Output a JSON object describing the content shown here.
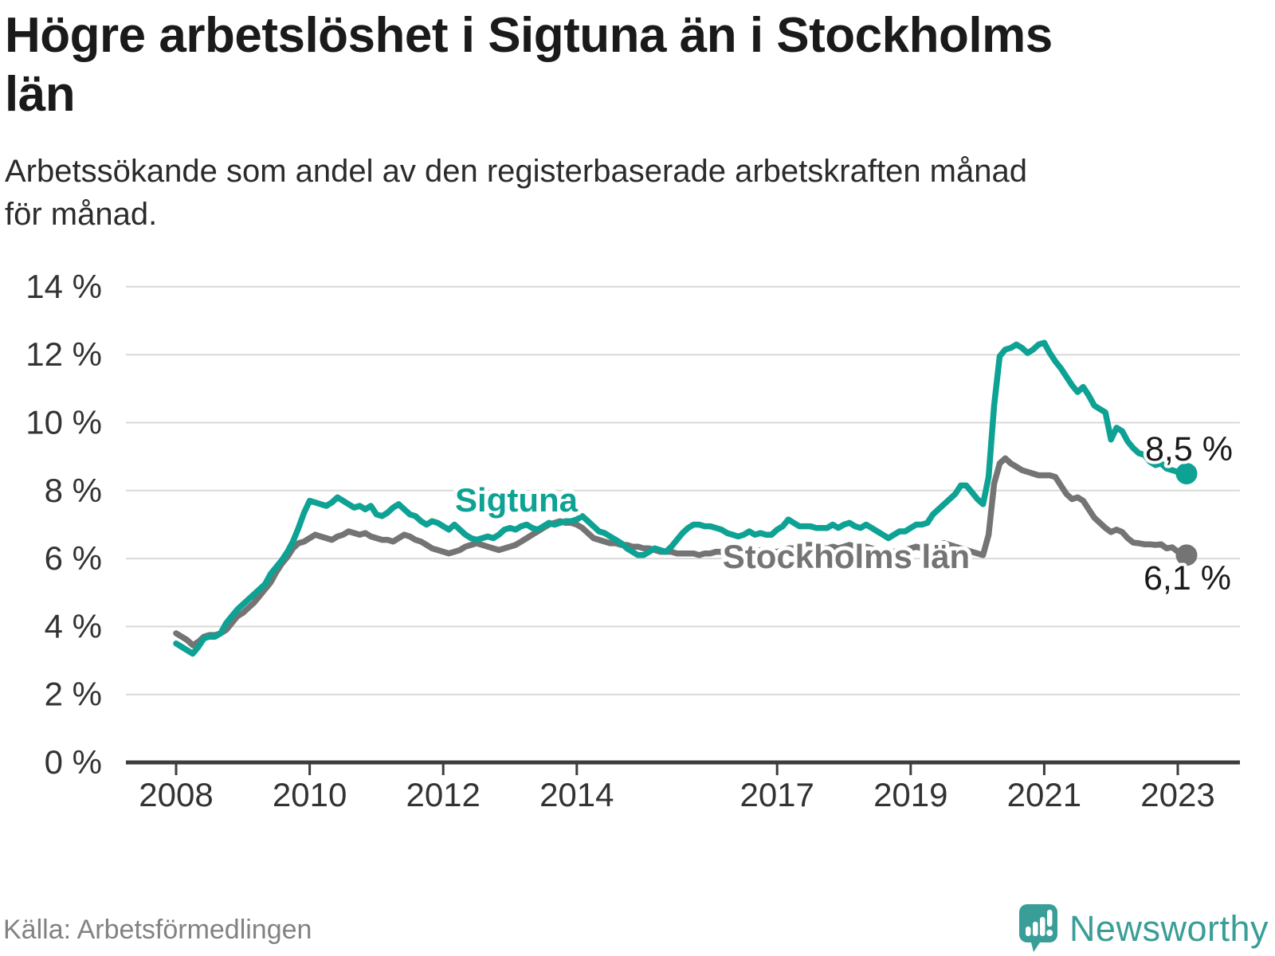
{
  "header": {
    "title": "Högre arbetslöshet i Sigtuna än i Stockholms\nlän",
    "subtitle": "Arbetssökande som andel av den registerbaserade arbetskraften månad\nför månad."
  },
  "chart_data": {
    "type": "line",
    "title": "Högre arbetslöshet i Sigtuna än i Stockholms län",
    "ylabel": "",
    "xlabel": "",
    "unit": "%",
    "x_start_year": 2008,
    "x_start_month": 1,
    "months_per_point": 1,
    "ylim": [
      0,
      14
    ],
    "grid": true,
    "y_ticks": [
      0,
      2,
      4,
      6,
      8,
      10,
      12,
      14
    ],
    "y_tick_labels": [
      "0 %",
      "2 %",
      "4 %",
      "6 %",
      "8 %",
      "10 %",
      "12 %",
      "14 %"
    ],
    "x_ticks": [
      2008,
      2010,
      2012,
      2014,
      2017,
      2019,
      2021,
      2023
    ],
    "x_tick_labels": [
      "2008",
      "2010",
      "2012",
      "2014",
      "2017",
      "2019",
      "2021",
      "2023"
    ],
    "series": [
      {
        "name": "Sigtuna",
        "color": "#0da294",
        "end_label": "8,5 %",
        "values": [
          3.5,
          3.4,
          3.3,
          3.2,
          3.4,
          3.65,
          3.7,
          3.7,
          3.8,
          4.1,
          4.3,
          4.5,
          4.65,
          4.8,
          4.95,
          5.1,
          5.25,
          5.55,
          5.75,
          5.95,
          6.2,
          6.5,
          6.9,
          7.35,
          7.7,
          7.65,
          7.6,
          7.55,
          7.65,
          7.8,
          7.7,
          7.6,
          7.5,
          7.55,
          7.45,
          7.55,
          7.3,
          7.25,
          7.35,
          7.5,
          7.6,
          7.45,
          7.3,
          7.25,
          7.1,
          7.0,
          7.1,
          7.05,
          6.95,
          6.85,
          7.0,
          6.85,
          6.7,
          6.6,
          6.55,
          6.6,
          6.65,
          6.6,
          6.7,
          6.85,
          6.9,
          6.85,
          6.95,
          7.0,
          6.9,
          6.85,
          6.95,
          7.05,
          7.0,
          7.05,
          7.1,
          7.1,
          7.15,
          7.25,
          7.1,
          6.95,
          6.8,
          6.75,
          6.65,
          6.55,
          6.45,
          6.3,
          6.2,
          6.1,
          6.1,
          6.2,
          6.3,
          6.25,
          6.2,
          6.35,
          6.55,
          6.75,
          6.9,
          7.0,
          7.0,
          6.95,
          6.95,
          6.9,
          6.85,
          6.75,
          6.7,
          6.65,
          6.7,
          6.8,
          6.7,
          6.75,
          6.7,
          6.7,
          6.85,
          6.95,
          7.15,
          7.05,
          6.95,
          6.95,
          6.95,
          6.9,
          6.9,
          6.9,
          7.0,
          6.9,
          7.0,
          7.05,
          6.95,
          6.9,
          7.0,
          6.9,
          6.8,
          6.7,
          6.6,
          6.7,
          6.8,
          6.8,
          6.9,
          7.0,
          7.0,
          7.05,
          7.3,
          7.45,
          7.6,
          7.75,
          7.9,
          8.15,
          8.15,
          7.95,
          7.75,
          7.6,
          8.4,
          10.5,
          11.95,
          12.15,
          12.2,
          12.3,
          12.2,
          12.05,
          12.15,
          12.3,
          12.35,
          12.05,
          11.8,
          11.6,
          11.35,
          11.1,
          10.9,
          11.05,
          10.8,
          10.5,
          10.4,
          10.3,
          9.5,
          9.85,
          9.75,
          9.45,
          9.25,
          9.1,
          9.05,
          8.85,
          8.75,
          8.8,
          8.65,
          8.6,
          8.55,
          8.5
        ]
      },
      {
        "name": "Stockholms län",
        "color": "#747474",
        "end_label": "6,1 %",
        "values": [
          3.8,
          3.7,
          3.6,
          3.45,
          3.55,
          3.7,
          3.75,
          3.75,
          3.8,
          3.9,
          4.1,
          4.3,
          4.4,
          4.55,
          4.7,
          4.9,
          5.1,
          5.3,
          5.6,
          5.85,
          6.05,
          6.3,
          6.45,
          6.5,
          6.6,
          6.7,
          6.65,
          6.6,
          6.55,
          6.65,
          6.7,
          6.8,
          6.75,
          6.7,
          6.75,
          6.65,
          6.6,
          6.55,
          6.55,
          6.5,
          6.6,
          6.7,
          6.65,
          6.55,
          6.5,
          6.4,
          6.3,
          6.25,
          6.2,
          6.15,
          6.2,
          6.25,
          6.35,
          6.4,
          6.45,
          6.4,
          6.35,
          6.3,
          6.25,
          6.3,
          6.35,
          6.4,
          6.5,
          6.6,
          6.7,
          6.8,
          6.9,
          7.0,
          7.05,
          7.1,
          7.05,
          7.05,
          7.0,
          6.9,
          6.75,
          6.6,
          6.55,
          6.5,
          6.45,
          6.45,
          6.4,
          6.4,
          6.35,
          6.35,
          6.3,
          6.3,
          6.25,
          6.2,
          6.2,
          6.2,
          6.15,
          6.15,
          6.15,
          6.15,
          6.1,
          6.15,
          6.15,
          6.2,
          6.2,
          6.25,
          6.25,
          6.3,
          6.3,
          6.25,
          6.2,
          6.25,
          6.25,
          6.2,
          6.2,
          6.25,
          6.3,
          6.3,
          6.35,
          6.4,
          6.4,
          6.35,
          6.3,
          6.3,
          6.35,
          6.3,
          6.35,
          6.4,
          6.35,
          6.3,
          6.35,
          6.3,
          6.25,
          6.2,
          6.15,
          6.2,
          6.25,
          6.25,
          6.3,
          6.35,
          6.3,
          6.3,
          6.35,
          6.4,
          6.45,
          6.4,
          6.35,
          6.3,
          6.25,
          6.2,
          6.15,
          6.1,
          6.7,
          8.2,
          8.8,
          8.95,
          8.8,
          8.7,
          8.6,
          8.55,
          8.5,
          8.45,
          8.45,
          8.45,
          8.4,
          8.15,
          7.9,
          7.75,
          7.8,
          7.7,
          7.45,
          7.2,
          7.05,
          6.9,
          6.78,
          6.85,
          6.78,
          6.6,
          6.47,
          6.45,
          6.42,
          6.42,
          6.4,
          6.42,
          6.3,
          6.33,
          6.2,
          6.1
        ]
      }
    ],
    "legend_position": "inline-labels"
  },
  "footer": {
    "source": "Källa: Arbetsförmedlingen",
    "brand": "Newsworthy"
  },
  "colors": {
    "sigtuna": "#0da294",
    "stockholm": "#747474",
    "grid": "#d9d9d9",
    "axis": "#3d3d3d",
    "brand_teal": "#3a9e98"
  }
}
